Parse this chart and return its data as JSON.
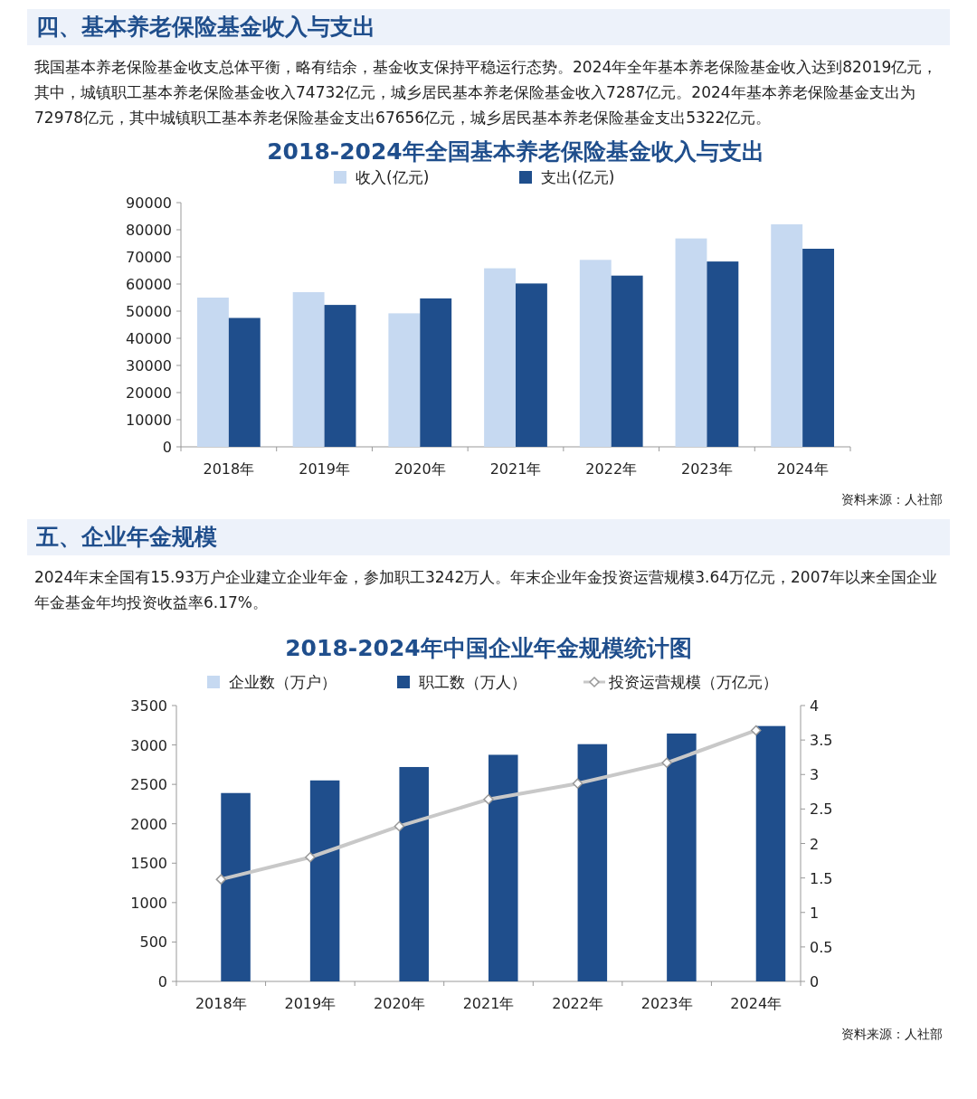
{
  "chart_data": [
    {
      "type": "bar",
      "title": "2018-2024年全国基本养老保险基金收入与支出",
      "categories": [
        "2018年",
        "2019年",
        "2020年",
        "2021年",
        "2022年",
        "2023年",
        "2024年"
      ],
      "series": [
        {
          "name": "收入(亿元)",
          "color": "#c6d9f1",
          "values": [
            55000,
            57000,
            49200,
            65800,
            68900,
            76800,
            82000
          ]
        },
        {
          "name": "支出(亿元)",
          "color": "#1f4e8c",
          "values": [
            47500,
            52300,
            54700,
            60200,
            63100,
            68300,
            73000
          ]
        }
      ],
      "ylim": [
        0,
        90000
      ],
      "yticks": [
        0,
        10000,
        20000,
        30000,
        40000,
        50000,
        60000,
        70000,
        80000,
        90000
      ],
      "legend": "top",
      "annotations": [
        "四、基本养老保险基金收入与支出",
        "我国基本养老保险基金收支总体平衡，略有结余，基金收支保持平稳运行态势。2024年全年基本养老保险基金收入达到82019亿元，其中，城镇职工基本养老保险基金收入74732亿元，城乡居民基本养老保险基金收入7287亿元。2024年基本养老保险基金支出为72978亿元，其中城镇职工基本养老保险基金支出67656亿元，城乡居民基本养老保险基金支出5322亿元。",
        "资料来源：人社部"
      ]
    },
    {
      "type": "bar",
      "title": "2018-2024年中国企业年金规模统计图",
      "categories": [
        "2018年",
        "2019年",
        "2020年",
        "2021年",
        "2022年",
        "2023年",
        "2024年"
      ],
      "series": [
        {
          "name": "企业数（万户）",
          "color": "#c6d9f1",
          "values": [
            null,
            null,
            null,
            null,
            null,
            null,
            null
          ]
        },
        {
          "name": "职工数（万人）",
          "color": "#1f4e8c",
          "values": [
            2390,
            2550,
            2720,
            2875,
            3010,
            3145,
            3240
          ]
        },
        {
          "name": "投资运营规模（万亿元）",
          "color": "#c8c8c8",
          "type": "line",
          "axis": "y2",
          "marker": "diamond",
          "values": [
            1.48,
            1.8,
            2.25,
            2.64,
            2.87,
            3.17,
            3.64
          ]
        }
      ],
      "ylim": [
        0,
        3500
      ],
      "yticks": [
        0,
        500,
        1000,
        1500,
        2000,
        2500,
        3000,
        3500
      ],
      "y2lim": [
        0,
        4
      ],
      "y2ticks": [
        0,
        0.5,
        1,
        1.5,
        2,
        2.5,
        3,
        3.5,
        4
      ],
      "legend": "top",
      "annotations": [
        "五、企业年金规模",
        "2024年末全国有15.93万户企业建立企业年金，参加职工3242万人。年末企业年金投资运营规模3.64万亿元，2007年以来全国企业年金基金年均投资收益率6.17%。",
        "资料来源：人社部"
      ]
    }
  ]
}
